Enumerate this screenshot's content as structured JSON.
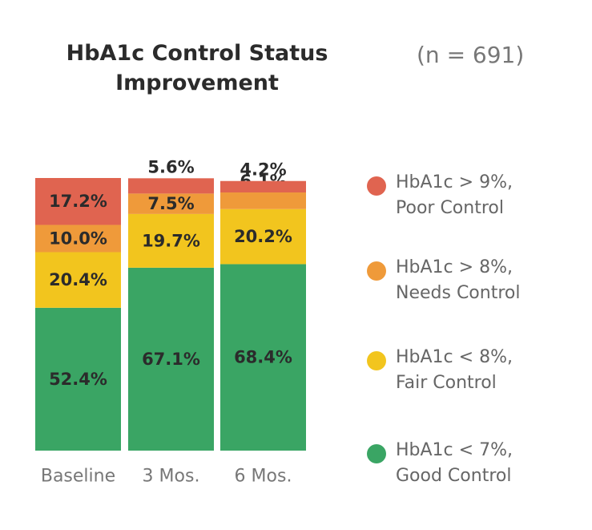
{
  "title": "HbA1c Control Status Improvement",
  "subtitle": "(n = 691)",
  "chart_data": {
    "type": "bar",
    "stacked": true,
    "categories": [
      "Baseline",
      "3 Mos.",
      "6 Mos."
    ],
    "ylim": [
      0,
      100
    ],
    "grid": false,
    "legend_position": "right",
    "series": [
      {
        "name": "HbA1c < 7%, Good Control",
        "color": "#3aa564",
        "values": [
          52.4,
          67.1,
          68.4
        ],
        "labels": [
          "52.4%",
          "67.1%",
          "68.4%"
        ]
      },
      {
        "name": "HbA1c < 8%, Fair Control",
        "color": "#f2c51e",
        "values": [
          20.4,
          19.7,
          20.2
        ],
        "labels": [
          "20.4%",
          "19.7%",
          "20.2%"
        ]
      },
      {
        "name": "HbA1c > 8%, Needs Control",
        "color": "#ef9a3a",
        "values": [
          10.0,
          7.5,
          6.1
        ],
        "labels": [
          "10.0%",
          "7.5%",
          "6.1%"
        ]
      },
      {
        "name": "HbA1c > 9%, Poor Control",
        "color": "#e06450",
        "values": [
          17.2,
          5.6,
          4.2
        ],
        "labels": [
          "17.2%",
          "5.6%",
          "4.2%"
        ]
      }
    ]
  },
  "legend": {
    "items": [
      {
        "line1": "HbA1c > 9%,",
        "line2": "Poor Control",
        "color": "#e06450"
      },
      {
        "line1": "HbA1c > 8%,",
        "line2": "Needs Control",
        "color": "#ef9a3a"
      },
      {
        "line1": "HbA1c < 8%,",
        "line2": "Fair Control",
        "color": "#f2c51e"
      },
      {
        "line1": "HbA1c < 7%,",
        "line2": "Good Control",
        "color": "#3aa564"
      }
    ]
  }
}
